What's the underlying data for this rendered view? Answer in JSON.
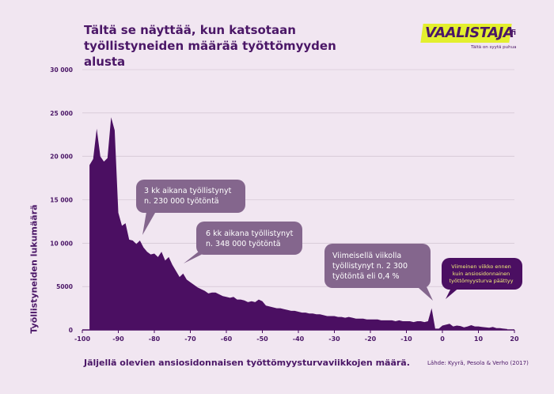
{
  "header": {
    "title": "Tältä se näyttää, kun katsotaan työllistyneiden määrää työttömyyden alusta"
  },
  "logo": {
    "text": "VAALISTAJA",
    "suffix": ".fi",
    "tagline": "Tältä on syytä puhua",
    "colors": {
      "box": "#e3ef2e",
      "text": "#4b1767"
    }
  },
  "footer": {
    "xlabel": "Jäljellä olevien ansiosidonnaisen työttömyysturvaviikkojen määrä.",
    "source": "Lähde: Kyyrä, Pesola & Verho (2017)"
  },
  "colors": {
    "area": "#4b0f62",
    "bubble": "#84668d",
    "bubble_dark": "#4b0f62",
    "grid": "#cbbccb"
  },
  "chart_data": {
    "type": "area",
    "title": "Tältä se näyttää, kun katsotaan työllistyneiden määrää työttömyyden alusta",
    "xlabel": "Jäljellä olevien ansiosidonnaisen työttömyysturvaviikkojen määrä.",
    "ylabel": "Työllistyneiden lukumäärä",
    "xlim": [
      -100,
      20
    ],
    "ylim": [
      0,
      30000
    ],
    "x_ticks": [
      -100,
      -90,
      -80,
      -70,
      -60,
      -50,
      -40,
      -30,
      -20,
      -10,
      0,
      10,
      20
    ],
    "y_ticks": [
      0,
      5000,
      10000,
      15000,
      20000,
      25000,
      30000
    ],
    "y_tick_labels": [
      "0",
      "5000",
      "10 000",
      "15 000",
      "20 000",
      "25 000",
      "30 000"
    ],
    "grid": true,
    "series": [
      {
        "x": [
          -98,
          -97,
          -96,
          -95,
          -94,
          -93,
          -92,
          -91,
          -90,
          -89,
          -88,
          -87,
          -86,
          -85,
          -84,
          -83,
          -82,
          -81,
          -80,
          -79,
          -78,
          -77,
          -76,
          -75,
          -74,
          -73,
          -72,
          -71,
          -70,
          -69,
          -68,
          -67,
          -66,
          -65,
          -64,
          -63,
          -62,
          -61,
          -60,
          -59,
          -58,
          -57,
          -56,
          -55,
          -54,
          -53,
          -52,
          -51,
          -50,
          -49,
          -48,
          -47,
          -46,
          -45,
          -44,
          -43,
          -42,
          -41,
          -40,
          -39,
          -38,
          -37,
          -36,
          -35,
          -34,
          -33,
          -32,
          -31,
          -30,
          -29,
          -28,
          -27,
          -26,
          -25,
          -24,
          -23,
          -22,
          -21,
          -20,
          -19,
          -18,
          -17,
          -16,
          -15,
          -14,
          -13,
          -12,
          -11,
          -10,
          -9,
          -8,
          -7,
          -6,
          -5,
          -4,
          -3,
          -2,
          -1,
          0,
          1,
          2,
          3,
          4,
          5,
          6,
          7,
          8,
          9,
          10,
          11,
          12,
          13,
          14,
          15,
          16,
          17,
          18
        ],
        "y": [
          19000,
          19700,
          23200,
          20000,
          19400,
          19800,
          24500,
          23000,
          13500,
          12000,
          12300,
          10400,
          10300,
          9900,
          10300,
          9500,
          9000,
          8700,
          8800,
          8400,
          9000,
          8000,
          8400,
          7500,
          6800,
          6100,
          6500,
          5800,
          5500,
          5200,
          4900,
          4700,
          4500,
          4200,
          4300,
          4300,
          4100,
          3900,
          3800,
          3700,
          3800,
          3500,
          3500,
          3400,
          3200,
          3300,
          3200,
          3500,
          3300,
          2800,
          2700,
          2600,
          2500,
          2500,
          2400,
          2300,
          2200,
          2200,
          2100,
          2000,
          2000,
          1900,
          1900,
          1800,
          1800,
          1700,
          1600,
          1600,
          1600,
          1500,
          1500,
          1400,
          1500,
          1400,
          1300,
          1300,
          1300,
          1200,
          1200,
          1200,
          1200,
          1100,
          1100,
          1100,
          1100,
          1000,
          1100,
          1000,
          1000,
          1000,
          900,
          1000,
          1000,
          900,
          1000,
          2500,
          150,
          150,
          500,
          600,
          700,
          400,
          500,
          450,
          300,
          400,
          550,
          400,
          400,
          350,
          300,
          250,
          350,
          200,
          200,
          150,
          100
        ]
      }
    ],
    "annotations": [
      {
        "text": [
          "3 kk aikana työllistynyt",
          "n. 230 000 työtöntä"
        ],
        "x": -84
      },
      {
        "text": [
          "6 kk aikana työllistynyt",
          "n. 348 000 työtöntä"
        ],
        "x": -72
      },
      {
        "text": [
          "Viimeisellä viikolla",
          "työllistynyt n. 2 300",
          "työtöntä eli 0,4 %"
        ],
        "x": -2
      },
      {
        "text": [
          "Viimeinen viikko ennen",
          "kuin ansiosidonnainen",
          "työttömyysturva päättyy"
        ],
        "x": 1
      }
    ]
  }
}
